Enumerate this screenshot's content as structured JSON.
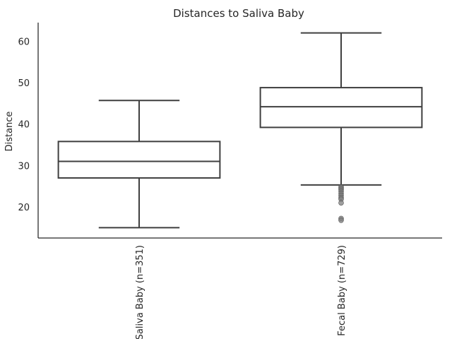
{
  "chart_data": {
    "type": "box",
    "title": "Distances to Saliva Baby",
    "xlabel": "",
    "ylabel": "Distance",
    "ylim": [
      12.5,
      64.5
    ],
    "yticks": [
      20,
      30,
      40,
      50,
      60
    ],
    "grid": false,
    "categories": [
      "Saliva Baby (n=351)",
      "Fecal Baby (n=729)"
    ],
    "boxes": [
      {
        "category": "Saliva Baby (n=351)",
        "whisker_low": 15.0,
        "q1": 27.0,
        "median": 31.0,
        "q3": 35.8,
        "whisker_high": 45.7,
        "outliers": []
      },
      {
        "category": "Fecal Baby (n=729)",
        "whisker_low": 25.3,
        "q1": 39.2,
        "median": 44.2,
        "q3": 48.8,
        "whisker_high": 62.0,
        "outliers": [
          24.8,
          24.5,
          24.2,
          23.8,
          23.3,
          22.8,
          22.3,
          21.9,
          21.0,
          17.2,
          16.8
        ]
      }
    ],
    "colors": {
      "box_fill": "#ffffff",
      "box_edge": "#3f3f3f",
      "outlier": "#7f7f7f",
      "axis": "#262626"
    }
  }
}
